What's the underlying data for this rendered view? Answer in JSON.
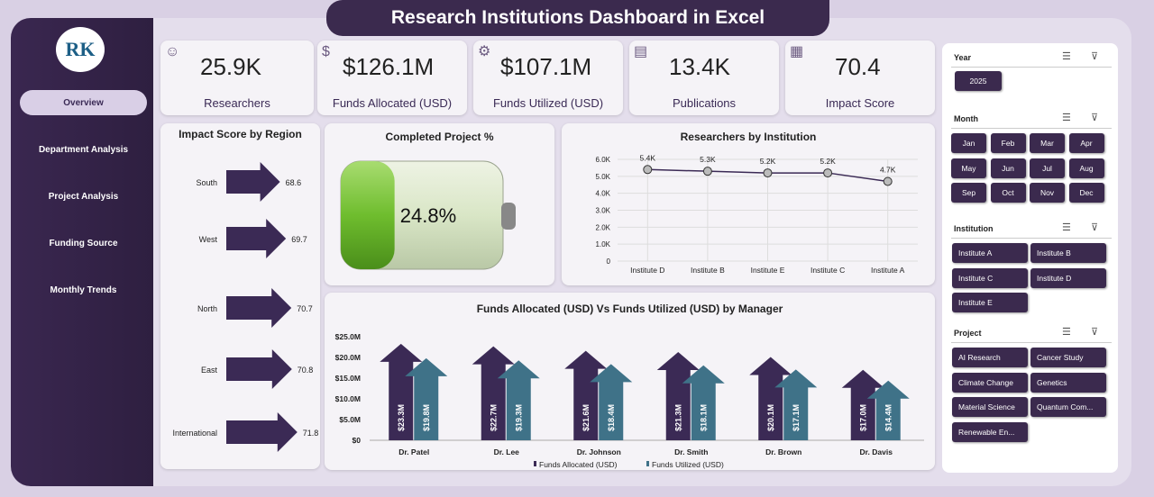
{
  "title": "Research Institutions Dashboard in Excel",
  "logo": "RK",
  "nav": [
    "Overview",
    "Department Analysis",
    "Project Analysis",
    "Funding Source",
    "Monthly Trends"
  ],
  "kpis": [
    {
      "value": "25.9K",
      "label": "Researchers",
      "icon": "researcher-icon"
    },
    {
      "value": "$126.1M",
      "label": "Funds Allocated (USD)",
      "icon": "money-hand-icon"
    },
    {
      "value": "$107.1M",
      "label": "Funds Utilized (USD)",
      "icon": "gear-chart-icon"
    },
    {
      "value": "13.4K",
      "label": "Publications",
      "icon": "publication-icon"
    },
    {
      "value": "70.4",
      "label": "Impact Score",
      "icon": "report-icon"
    }
  ],
  "region": {
    "title": "Impact Score by Region",
    "categories": [
      "South",
      "West",
      "North",
      "East",
      "International"
    ],
    "values": [
      68.6,
      69.7,
      70.7,
      70.8,
      71.8
    ],
    "labels": [
      "68.6",
      "69.7",
      "70.7",
      "70.8",
      "71.8"
    ]
  },
  "completed": {
    "title": "Completed Project %",
    "value": "24.8%",
    "fraction": 0.248
  },
  "chart_data": [
    {
      "type": "line",
      "title": "Researchers by Institution",
      "categories": [
        "Institute D",
        "Institute B",
        "Institute E",
        "Institute C",
        "Institute A"
      ],
      "values": [
        5400,
        5300,
        5200,
        5200,
        4700
      ],
      "data_labels": [
        "5.4K",
        "5.3K",
        "5.2K",
        "5.2K",
        "4.7K"
      ],
      "ylim": [
        0,
        6000
      ],
      "yticks": [
        "0",
        "1.0K",
        "2.0K",
        "3.0K",
        "4.0K",
        "5.0K",
        "6.0K"
      ],
      "grid": true
    },
    {
      "type": "bar",
      "title": "Funds Allocated (USD) Vs Funds Utilized (USD) by Manager",
      "categories": [
        "Dr. Patel",
        "Dr. Lee",
        "Dr. Johnson",
        "Dr. Smith",
        "Dr. Brown",
        "Dr. Davis"
      ],
      "series": [
        {
          "name": "Funds Allocated (USD)",
          "values": [
            23.3,
            22.7,
            21.6,
            21.3,
            20.1,
            17.0
          ],
          "labels": [
            "$23.3M",
            "$22.7M",
            "$21.6M",
            "$21.3M",
            "$20.1M",
            "$17.0M"
          ],
          "color": "#3b2a55"
        },
        {
          "name": "Funds Utilized (USD)",
          "values": [
            19.8,
            19.3,
            18.4,
            18.1,
            17.1,
            14.4
          ],
          "labels": [
            "$19.8M",
            "$19.3M",
            "$18.4M",
            "$18.1M",
            "$17.1M",
            "$14.4M"
          ],
          "color": "#3f7288"
        }
      ],
      "ylim": [
        0,
        25
      ],
      "yticks": [
        "$0",
        "$5.0M",
        "$10.0M",
        "$15.0M",
        "$20.0M",
        "$25.0M"
      ],
      "legend": "bottom"
    }
  ],
  "slicers": {
    "year": {
      "label": "Year",
      "items": [
        "2025"
      ]
    },
    "month": {
      "label": "Month",
      "items": [
        "Jan",
        "Feb",
        "Mar",
        "Apr",
        "May",
        "Jun",
        "Jul",
        "Aug",
        "Sep",
        "Oct",
        "Nov",
        "Dec"
      ]
    },
    "institution": {
      "label": "Institution",
      "items": [
        "Institute A",
        "Institute B",
        "Institute C",
        "Institute D",
        "Institute E"
      ]
    },
    "project": {
      "label": "Project",
      "items": [
        "AI Research",
        "Cancer Study",
        "Climate Change",
        "Genetics",
        "Material Science",
        "Quantum Com...",
        "Renewable En..."
      ]
    }
  }
}
